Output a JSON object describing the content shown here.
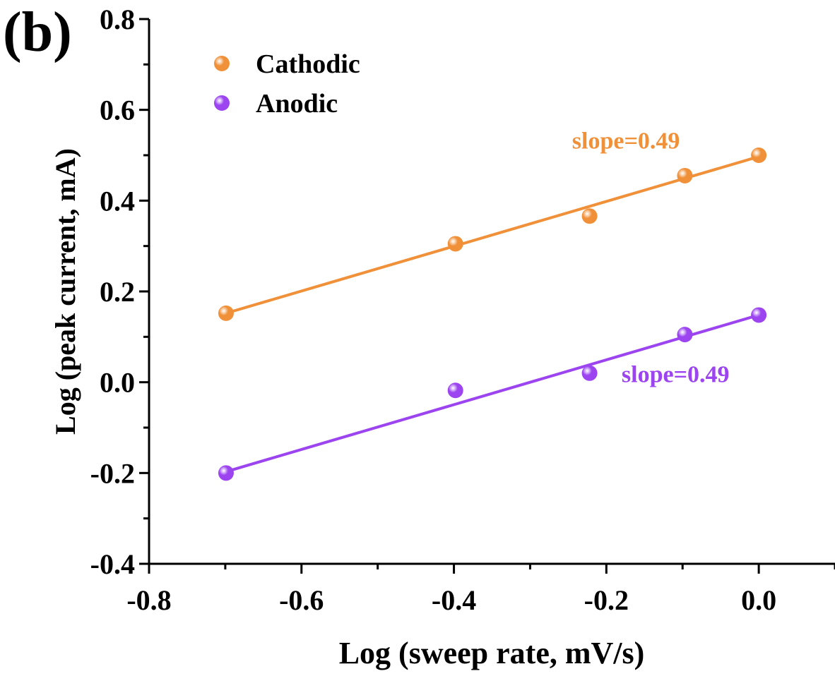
{
  "panel_label": "(b)",
  "chart_data": {
    "type": "scatter",
    "xlabel": "Log (sweep rate, mV/s)",
    "ylabel": "Log (peak current, mA)",
    "xlim": [
      -0.8,
      0.1
    ],
    "ylim": [
      -0.4,
      0.8
    ],
    "x_ticks": [
      -0.8,
      -0.6,
      -0.4,
      -0.2,
      0.0
    ],
    "x_tick_labels": [
      "-0.8",
      "-0.6",
      "-0.4",
      "-0.2",
      "0.0"
    ],
    "y_ticks": [
      -0.4,
      -0.2,
      0.0,
      0.2,
      0.4,
      0.6,
      0.8
    ],
    "y_tick_labels": [
      "-0.4",
      "-0.2",
      "0.0",
      "0.2",
      "0.4",
      "0.6",
      "0.8"
    ],
    "grid": false,
    "legend_position": "top-left",
    "series": [
      {
        "name": "Cathodic",
        "color": "#f0913a",
        "x": [
          -0.699,
          -0.398,
          -0.222,
          -0.097,
          0.0
        ],
        "y": [
          0.152,
          0.305,
          0.366,
          0.455,
          0.5
        ],
        "fit": {
          "x": [
            -0.699,
            0.0
          ],
          "y": [
            0.152,
            0.497
          ]
        },
        "annotation": {
          "text": "slope=0.49",
          "x": -0.245,
          "y": 0.515
        }
      },
      {
        "name": "Anodic",
        "color": "#9b44f0",
        "x": [
          -0.699,
          -0.398,
          -0.222,
          -0.097,
          0.0
        ],
        "y": [
          -0.2,
          -0.018,
          0.02,
          0.105,
          0.148
        ],
        "fit": {
          "x": [
            -0.699,
            0.0
          ],
          "y": [
            -0.197,
            0.148
          ]
        },
        "annotation": {
          "text": "slope=0.49",
          "x": -0.18,
          "y": 0.0
        }
      }
    ]
  }
}
